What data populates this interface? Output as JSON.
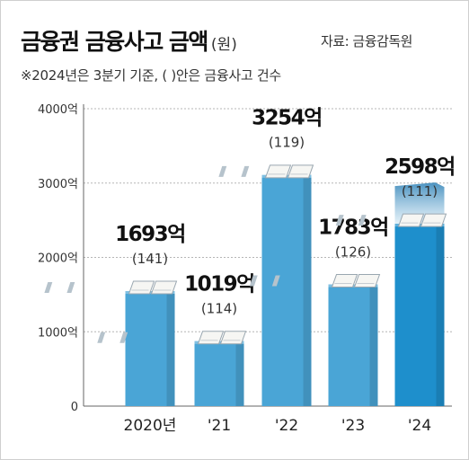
{
  "header": {
    "title": "금융권 금융사고 금액",
    "unit": "(원)",
    "source": "자료: 금융감독원",
    "note": "※2024년은 3분기 기준, ( )안은 금융사고 건수"
  },
  "chart_data": {
    "type": "bar",
    "categories": [
      "2020년",
      "'21",
      "'22",
      "'23",
      "'24"
    ],
    "values": [
      1693,
      1019,
      3254,
      1783,
      2598
    ],
    "value_labels": [
      "1693억",
      "1019억",
      "3254억",
      "1783억",
      "2598억"
    ],
    "counts": [
      "(141)",
      "(114)",
      "(119)",
      "(126)",
      "(111)"
    ],
    "ylim": [
      0,
      4000
    ],
    "yticks": [
      0,
      1000,
      2000,
      3000,
      4000
    ],
    "ytick_labels": [
      "0",
      "1000억",
      "2000억",
      "3000억",
      "4000억"
    ],
    "grid": true,
    "colors": {
      "bar": "#4aa5d6",
      "bar_highlight": "#1e8fcc",
      "grid": "#b5b5b5",
      "axis": "#666666"
    }
  }
}
